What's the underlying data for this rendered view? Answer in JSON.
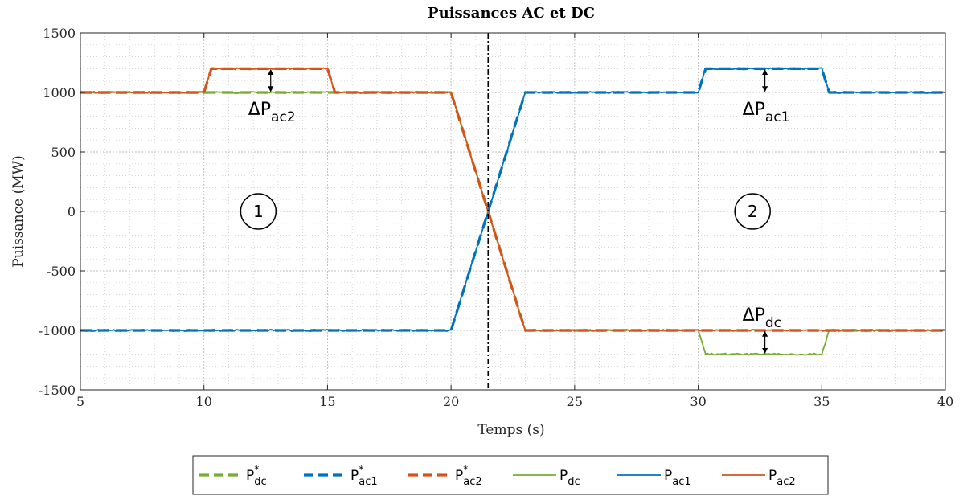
{
  "chart_data": {
    "type": "line",
    "title": "Puissances AC et DC",
    "xlabel": "Temps (s)",
    "ylabel": "Puissance (MW)",
    "xlim": [
      5,
      40
    ],
    "ylim": [
      -1500,
      1500
    ],
    "xticks": [
      "5",
      "10",
      "15",
      "20",
      "25",
      "30",
      "35",
      "40"
    ],
    "yticks": [
      "-1500",
      "-1000",
      "-500",
      "0",
      "500",
      "1000",
      "1500"
    ],
    "grid": "on",
    "minor_grid": "on",
    "legend_position": "bottom-outside",
    "series": [
      {
        "name": "P*dc",
        "label_main": "P",
        "label_sup": "*",
        "label_sub": "dc",
        "style": "dashed",
        "color": "#77AC30",
        "x": [
          5,
          20,
          23,
          40
        ],
        "y": [
          1000,
          1000,
          -1000,
          -1000
        ]
      },
      {
        "name": "P*ac1",
        "label_main": "P",
        "label_sup": "*",
        "label_sub": "ac1",
        "style": "dashed",
        "color": "#0072BD",
        "x": [
          5,
          20,
          23,
          30,
          30.3,
          35,
          35.3,
          40
        ],
        "y": [
          -1000,
          -1000,
          1000,
          1000,
          1200,
          1200,
          1000,
          1000
        ]
      },
      {
        "name": "P*ac2",
        "label_main": "P",
        "label_sup": "*",
        "label_sub": "ac2",
        "style": "dashed",
        "color": "#D95319",
        "x": [
          5,
          10,
          10.3,
          15,
          15.3,
          20,
          23,
          40
        ],
        "y": [
          1000,
          1000,
          1200,
          1200,
          1000,
          1000,
          -1000,
          -1000
        ]
      },
      {
        "name": "Pdc",
        "label_main": "P",
        "label_sup": "",
        "label_sub": "dc",
        "style": "solid",
        "color": "#77AC30",
        "x": [
          5,
          20,
          23,
          30,
          30.3,
          35,
          35.3,
          40
        ],
        "y": [
          1000,
          1000,
          -1000,
          -1000,
          -1200,
          -1200,
          -1000,
          -1000
        ]
      },
      {
        "name": "Pac1",
        "label_main": "P",
        "label_sup": "",
        "label_sub": "ac1",
        "style": "solid",
        "color": "#0072BD",
        "x": [
          5,
          20,
          23,
          30,
          30.3,
          35,
          35.3,
          40
        ],
        "y": [
          -1000,
          -1000,
          1000,
          1000,
          1200,
          1200,
          1000,
          1000
        ]
      },
      {
        "name": "Pac2",
        "label_main": "P",
        "label_sup": "",
        "label_sub": "ac2",
        "style": "solid",
        "color": "#D95319",
        "x": [
          5,
          10,
          10.3,
          15,
          15.3,
          20,
          23,
          40
        ],
        "y": [
          1000,
          1000,
          1200,
          1200,
          1000,
          1000,
          -1000,
          -1000
        ]
      }
    ],
    "vertical_line": {
      "x": 21.5,
      "style": "dash-dot",
      "color": "#000000"
    },
    "annotations": [
      {
        "main": "ΔP",
        "sub": "ac2",
        "x": 12.7,
        "y": 1000,
        "arrow_from": 1000,
        "arrow_to": 1200
      },
      {
        "main": "ΔP",
        "sub": "ac1",
        "x": 32.7,
        "y": 1000,
        "arrow_from": 1000,
        "arrow_to": 1200
      },
      {
        "main": "ΔP",
        "sub": "dc",
        "x": 32.7,
        "y": -1000,
        "arrow_from": -1000,
        "arrow_to": -1200
      }
    ],
    "region_markers": [
      {
        "label": "1",
        "x": 12.2,
        "y": 0
      },
      {
        "label": "2",
        "x": 32.2,
        "y": 0
      }
    ]
  }
}
